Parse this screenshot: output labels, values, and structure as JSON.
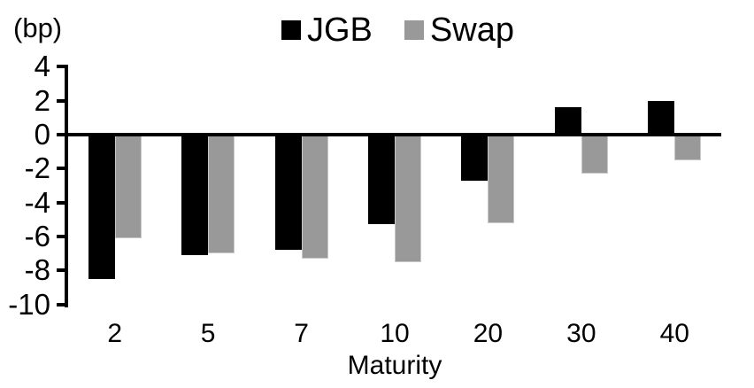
{
  "chart_data": {
    "type": "bar",
    "unit_label": "(bp)",
    "xlabel": "Maturity",
    "categories": [
      "2",
      "5",
      "7",
      "10",
      "20",
      "30",
      "40"
    ],
    "series": [
      {
        "name": "JGB",
        "color": "#000000",
        "values": [
          -8.5,
          -7.1,
          -6.8,
          -5.3,
          -2.7,
          1.6,
          2.0
        ]
      },
      {
        "name": "Swap",
        "color": "#999999",
        "values": [
          -6.1,
          -7.0,
          -7.3,
          -7.5,
          -5.2,
          -2.3,
          -1.5
        ]
      }
    ],
    "ylim": [
      4,
      -10
    ],
    "yticks": [
      4,
      2,
      0,
      -2,
      -4,
      -6,
      -8,
      -10
    ],
    "legend_position": "top-center",
    "grid": false,
    "axis_color": "#000000",
    "background": "#ffffff"
  }
}
